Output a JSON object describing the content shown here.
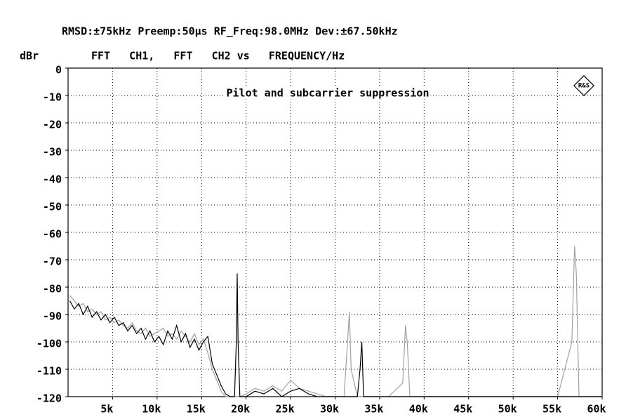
{
  "chart_data": {
    "type": "line",
    "header": "RMSD:±75kHz Preemp:50µs RF_Freq:98.0MHz Dev:±67.50kHz",
    "ylabel": "dBr",
    "title": "FFT   CH1,   FFT   CH2 vs   FREQUENCY/Hz",
    "annotation": "Pilot and subcarrier suppression",
    "xlim": [
      0,
      60000
    ],
    "ylim": [
      -120,
      0
    ],
    "xticks": [
      {
        "value": 5000,
        "label": "5k"
      },
      {
        "value": 10000,
        "label": "10k"
      },
      {
        "value": 15000,
        "label": "15k"
      },
      {
        "value": 20000,
        "label": "20k"
      },
      {
        "value": 25000,
        "label": "25k"
      },
      {
        "value": 30000,
        "label": "30k"
      },
      {
        "value": 35000,
        "label": "35k"
      },
      {
        "value": 40000,
        "label": "40k"
      },
      {
        "value": 45000,
        "label": "45k"
      },
      {
        "value": 50000,
        "label": "50k"
      },
      {
        "value": 55000,
        "label": "55k"
      },
      {
        "value": 60000,
        "label": "60k"
      }
    ],
    "yticks": [
      0,
      -10,
      -20,
      -30,
      -40,
      -50,
      -60,
      -70,
      -80,
      -90,
      -100,
      -110,
      -120
    ],
    "grid": true,
    "x": [
      200,
      700,
      1200,
      1700,
      2200,
      2700,
      3200,
      3700,
      4200,
      4700,
      5200,
      5700,
      6200,
      6700,
      7200,
      7700,
      8200,
      8700,
      9200,
      9700,
      10200,
      10700,
      11200,
      11700,
      12200,
      12700,
      13200,
      13700,
      14200,
      14700,
      15200,
      15700,
      16200,
      16700,
      17200,
      17700,
      18200,
      18700,
      18900,
      19000,
      19100,
      19300,
      20000,
      21000,
      22000,
      23000,
      24000,
      25000,
      26000,
      27000,
      28000,
      29000,
      30000,
      31000,
      31400,
      31600,
      31800,
      32500,
      32800,
      33000,
      33200,
      34000,
      36000,
      37600,
      37900,
      38100,
      38400,
      40000,
      45000,
      50000,
      55000,
      56600,
      56900,
      57100,
      57400,
      58000,
      60000
    ],
    "series": [
      {
        "name": "CH1",
        "color": "#000000",
        "values": [
          -85,
          -88,
          -86,
          -90,
          -87,
          -91,
          -89,
          -92,
          -90,
          -93,
          -91,
          -94,
          -93,
          -96,
          -94,
          -97,
          -95,
          -99,
          -96,
          -100,
          -98,
          -101,
          -96,
          -99,
          -94,
          -100,
          -97,
          -102,
          -99,
          -103,
          -100,
          -98,
          -108,
          -112,
          -116,
          -119,
          -120,
          -120,
          -100,
          -75,
          -100,
          -120,
          -120,
          -118,
          -119,
          -117,
          -120,
          -118,
          -117,
          -119,
          -120,
          -120,
          -120,
          -120,
          -120,
          -120,
          -120,
          -120,
          -110,
          -100,
          -120,
          -120,
          -120,
          -120,
          -120,
          -120,
          -120,
          -120,
          -120,
          -120,
          -120,
          -120,
          -120,
          -120,
          -120,
          -120,
          -120
        ]
      },
      {
        "name": "CH2",
        "color": "#a0a0a0",
        "values": [
          -83,
          -85,
          -87,
          -86,
          -89,
          -88,
          -90,
          -89,
          -92,
          -91,
          -93,
          -92,
          -94,
          -95,
          -93,
          -96,
          -97,
          -95,
          -98,
          -97,
          -96,
          -95,
          -98,
          -97,
          -99,
          -96,
          -98,
          -100,
          -97,
          -101,
          -99,
          -104,
          -110,
          -114,
          -118,
          -120,
          -120,
          -120,
          -120,
          -120,
          -120,
          -120,
          -119,
          -117,
          -118,
          -116,
          -118,
          -114,
          -117,
          -118,
          -119,
          -120,
          -120,
          -120,
          -100,
          -89,
          -110,
          -120,
          -120,
          -120,
          -120,
          -120,
          -120,
          -115,
          -94,
          -100,
          -120,
          -120,
          -120,
          -120,
          -120,
          -100,
          -65,
          -75,
          -120,
          -120,
          -120
        ]
      }
    ]
  }
}
